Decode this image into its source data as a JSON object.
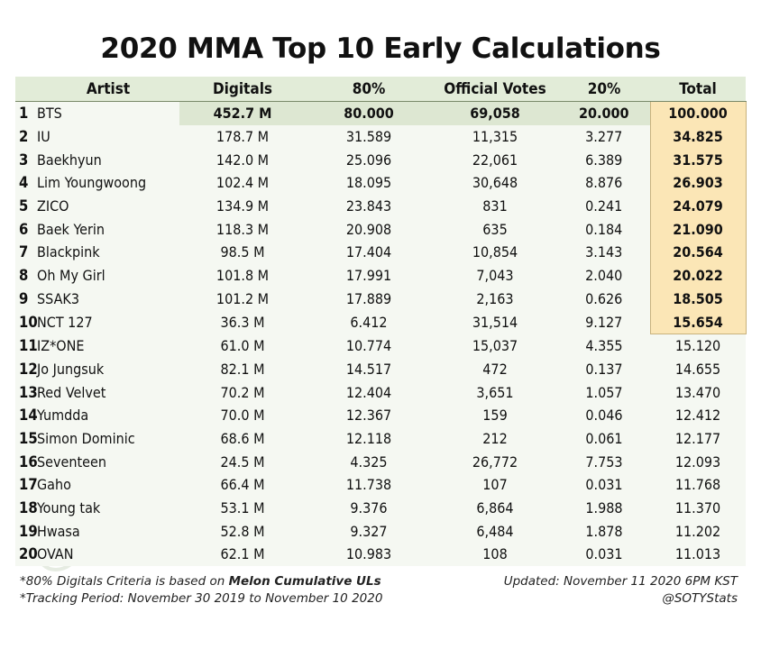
{
  "title": "2020 MMA Top 10 Early Calculations",
  "watermark": "@SOTYStats",
  "colors": {
    "header_bg": "#e2ecd8",
    "top1_bg": "#dde7d2",
    "total_highlight": "#fbe6b6",
    "row_bg": "#f5f8f2"
  },
  "chart_data": {
    "type": "table",
    "title": "2020 MMA Top 10 Early Calculations",
    "columns": [
      "",
      "Artist",
      "Digitals",
      "80%",
      "Official Votes",
      "20%",
      "Total"
    ],
    "rows": [
      {
        "rank": "1",
        "artist": "BTS",
        "digitals": "452.7 M",
        "pct80": "80.000",
        "votes": "69,058",
        "pct20": "20.000",
        "total": "100.000"
      },
      {
        "rank": "2",
        "artist": "IU",
        "digitals": "178.7 M",
        "pct80": "31.589",
        "votes": "11,315",
        "pct20": "3.277",
        "total": "34.825"
      },
      {
        "rank": "3",
        "artist": "Baekhyun",
        "digitals": "142.0 M",
        "pct80": "25.096",
        "votes": "22,061",
        "pct20": "6.389",
        "total": "31.575"
      },
      {
        "rank": "4",
        "artist": "Lim Youngwoong",
        "digitals": "102.4 M",
        "pct80": "18.095",
        "votes": "30,648",
        "pct20": "8.876",
        "total": "26.903"
      },
      {
        "rank": "5",
        "artist": "ZICO",
        "digitals": "134.9 M",
        "pct80": "23.843",
        "votes": "831",
        "pct20": "0.241",
        "total": "24.079"
      },
      {
        "rank": "6",
        "artist": "Baek Yerin",
        "digitals": "118.3 M",
        "pct80": "20.908",
        "votes": "635",
        "pct20": "0.184",
        "total": "21.090"
      },
      {
        "rank": "7",
        "artist": "Blackpink",
        "digitals": "98.5 M",
        "pct80": "17.404",
        "votes": "10,854",
        "pct20": "3.143",
        "total": "20.564"
      },
      {
        "rank": "8",
        "artist": "Oh My Girl",
        "digitals": "101.8 M",
        "pct80": "17.991",
        "votes": "7,043",
        "pct20": "2.040",
        "total": "20.022"
      },
      {
        "rank": "9",
        "artist": "SSAK3",
        "digitals": "101.2 M",
        "pct80": "17.889",
        "votes": "2,163",
        "pct20": "0.626",
        "total": "18.505"
      },
      {
        "rank": "10",
        "artist": "NCT 127",
        "digitals": "36.3 M",
        "pct80": "6.412",
        "votes": "31,514",
        "pct20": "9.127",
        "total": "15.654"
      },
      {
        "rank": "11",
        "artist": "IZ*ONE",
        "digitals": "61.0 M",
        "pct80": "10.774",
        "votes": "15,037",
        "pct20": "4.355",
        "total": "15.120"
      },
      {
        "rank": "12",
        "artist": "Jo Jungsuk",
        "digitals": "82.1 M",
        "pct80": "14.517",
        "votes": "472",
        "pct20": "0.137",
        "total": "14.655"
      },
      {
        "rank": "13",
        "artist": "Red Velvet",
        "digitals": "70.2 M",
        "pct80": "12.404",
        "votes": "3,651",
        "pct20": "1.057",
        "total": "13.470"
      },
      {
        "rank": "14",
        "artist": "Yumdda",
        "digitals": "70.0 M",
        "pct80": "12.367",
        "votes": "159",
        "pct20": "0.046",
        "total": "12.412"
      },
      {
        "rank": "15",
        "artist": "Simon Dominic",
        "digitals": "68.6 M",
        "pct80": "12.118",
        "votes": "212",
        "pct20": "0.061",
        "total": "12.177"
      },
      {
        "rank": "16",
        "artist": "Seventeen",
        "digitals": "24.5 M",
        "pct80": "4.325",
        "votes": "26,772",
        "pct20": "7.753",
        "total": "12.093"
      },
      {
        "rank": "17",
        "artist": "Gaho",
        "digitals": "66.4 M",
        "pct80": "11.738",
        "votes": "107",
        "pct20": "0.031",
        "total": "11.768"
      },
      {
        "rank": "18",
        "artist": "Young tak",
        "digitals": "53.1 M",
        "pct80": "9.376",
        "votes": "6,864",
        "pct20": "1.988",
        "total": "11.370"
      },
      {
        "rank": "19",
        "artist": "Hwasa",
        "digitals": "52.8 M",
        "pct80": "9.327",
        "votes": "6,484",
        "pct20": "1.878",
        "total": "11.202"
      },
      {
        "rank": "20",
        "artist": "OVAN",
        "digitals": "62.1 M",
        "pct80": "10.983",
        "votes": "108",
        "pct20": "0.031",
        "total": "11.013"
      }
    ],
    "highlight_top": 10
  },
  "footer": {
    "note1_prefix": "*80% Digitals Criteria is based on ",
    "note1_bold": "Melon Cumulative ULs",
    "note2": "*Tracking Period: November 30 2019 to November 10 2020",
    "updated": "Updated: November 11 2020 6PM KST",
    "handle": "@SOTYStats"
  }
}
